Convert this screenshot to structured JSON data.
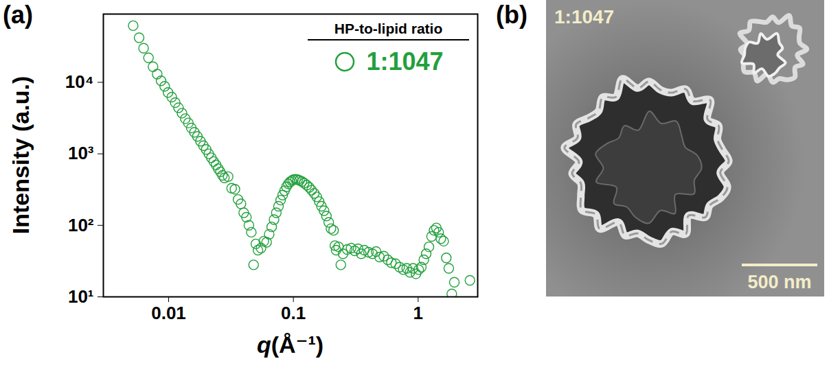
{
  "chart_data": {
    "type": "scatter",
    "panel": "(a)",
    "x_label": "q(Å⁻¹)",
    "y_label": "Intensity (a.u.)",
    "log": true,
    "xlim": [
      0.003,
      3
    ],
    "ylim": [
      10,
      90000
    ],
    "xticks": [
      0.01,
      0.1,
      1
    ],
    "yticks": [
      {
        "value": 10,
        "label": "10¹"
      },
      {
        "value": 100,
        "label": "10²"
      },
      {
        "value": 1000,
        "label": "10³"
      },
      {
        "value": 10000,
        "label": "10⁴"
      }
    ],
    "legend": "top-right",
    "legend_title": "HP-to-lipid ratio",
    "series": [
      {
        "name": "1:1047",
        "color": "#22a03c",
        "marker": "open_circle",
        "x": [
          0.0052,
          0.0058,
          0.0063,
          0.0069,
          0.0075,
          0.0081,
          0.0087,
          0.0093,
          0.0099,
          0.0106,
          0.0113,
          0.012,
          0.0128,
          0.0136,
          0.0144,
          0.0152,
          0.0161,
          0.017,
          0.018,
          0.019,
          0.02,
          0.021,
          0.022,
          0.023,
          0.024,
          0.025,
          0.026,
          0.027,
          0.028,
          0.03,
          0.032,
          0.034,
          0.036,
          0.038,
          0.04,
          0.042,
          0.044,
          0.046,
          0.048,
          0.05,
          0.052,
          0.055,
          0.058,
          0.061,
          0.064,
          0.067,
          0.07,
          0.073,
          0.076,
          0.079,
          0.082,
          0.085,
          0.088,
          0.091,
          0.094,
          0.097,
          0.1,
          0.104,
          0.108,
          0.112,
          0.117,
          0.122,
          0.128,
          0.134,
          0.14,
          0.147,
          0.154,
          0.161,
          0.168,
          0.176,
          0.184,
          0.192,
          0.2,
          0.21,
          0.215,
          0.22,
          0.23,
          0.24,
          0.25,
          0.27,
          0.29,
          0.31,
          0.33,
          0.35,
          0.37,
          0.4,
          0.43,
          0.46,
          0.49,
          0.53,
          0.57,
          0.61,
          0.66,
          0.71,
          0.76,
          0.81,
          0.86,
          0.91,
          0.96,
          1.01,
          1.06,
          1.11,
          1.16,
          1.22,
          1.28,
          1.34,
          1.4,
          1.46,
          1.52,
          1.6,
          1.68,
          1.76,
          1.86,
          1.95,
          2.6
        ],
        "values": [
          62000,
          42000,
          30000,
          22000,
          16500,
          13000,
          10500,
          8800,
          7200,
          6200,
          5200,
          4400,
          3700,
          3100,
          2700,
          2300,
          2000,
          1750,
          1500,
          1300,
          1150,
          1000,
          880,
          780,
          700,
          620,
          560,
          500,
          460,
          480,
          330,
          320,
          230,
          200,
          150,
          130,
          100,
          80,
          28,
          55,
          45,
          48,
          60,
          58,
          75,
          95,
          120,
          150,
          185,
          225,
          265,
          305,
          345,
          380,
          405,
          420,
          435,
          440,
          435,
          425,
          410,
          390,
          365,
          340,
          310,
          280,
          250,
          215,
          185,
          160,
          135,
          110,
          90,
          85,
          52,
          45,
          50,
          28,
          40,
          46,
          48,
          44,
          47,
          40,
          45,
          42,
          40,
          43,
          36,
          37,
          33,
          30,
          29,
          26,
          24,
          25,
          22,
          25,
          21,
          24,
          26,
          33,
          40,
          50,
          70,
          85,
          92,
          80,
          65,
          60,
          35,
          25,
          11,
          16,
          17
        ]
      }
    ]
  },
  "image_panel": {
    "panel": "(b)",
    "label": "1:1047",
    "scale_bar": "500 nm"
  }
}
